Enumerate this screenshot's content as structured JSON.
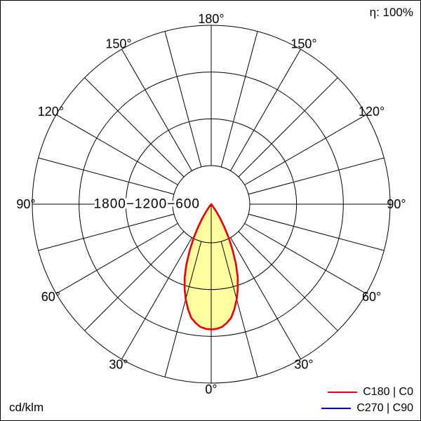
{
  "diagram": {
    "unit_label": "cd/klm",
    "efficiency_label": "η: 100%",
    "radial_scale_label": "1800−1200−600"
  },
  "legend": [
    {
      "label": "C180 | C0",
      "color": "#ee0000"
    },
    {
      "label": "C270 | C90",
      "color": "#0000cc"
    }
  ],
  "chart_data": {
    "type": "polar",
    "unit": "cd/klm",
    "efficiency_percent": 100,
    "radial_ticks": [
      600,
      1200,
      1800
    ],
    "radial_max": 1800,
    "angle_labels_deg": [
      0,
      30,
      60,
      90,
      120,
      150,
      180
    ],
    "angle_grid_step_deg": 15,
    "grid": true,
    "legend_position": "bottom-right",
    "series": [
      {
        "name": "C180 | C0",
        "color": "#ee0000",
        "fill": "#ffffa0",
        "symmetric": true,
        "gamma_deg": [
          0,
          2.5,
          5,
          7.5,
          10,
          12.5,
          15,
          17.5,
          20,
          22.5,
          25,
          27.5,
          30,
          32.5,
          35,
          37.5,
          40
        ],
        "values": [
          1260,
          1255,
          1240,
          1205,
          1160,
          1080,
          990,
          890,
          780,
          650,
          510,
          380,
          260,
          160,
          80,
          25,
          0
        ]
      },
      {
        "name": "C270 | C90",
        "color": "#0000cc",
        "fill": "none",
        "symmetric": true,
        "gamma_deg": [
          0,
          2.5,
          5,
          7.5,
          10,
          12.5,
          15,
          17.5,
          20,
          22.5,
          25,
          27.5,
          30,
          32.5,
          35,
          37.5,
          40
        ],
        "values": [
          1260,
          1255,
          1240,
          1205,
          1160,
          1080,
          990,
          890,
          780,
          650,
          510,
          380,
          260,
          160,
          80,
          25,
          0
        ]
      }
    ]
  }
}
